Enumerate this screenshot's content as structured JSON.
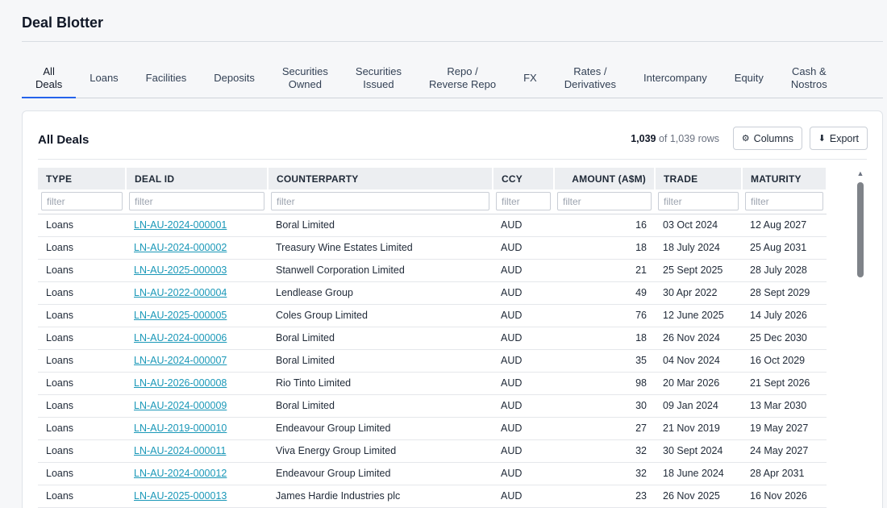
{
  "app": {
    "title": "Deal Blotter"
  },
  "tabs": [
    {
      "label": "All\nDeals",
      "active": true
    },
    {
      "label": "Loans"
    },
    {
      "label": "Facilities"
    },
    {
      "label": "Deposits"
    },
    {
      "label": "Securities\nOwned"
    },
    {
      "label": "Securities\nIssued"
    },
    {
      "label": "Repo /\nReverse Repo"
    },
    {
      "label": "FX"
    },
    {
      "label": "Rates /\nDerivatives"
    },
    {
      "label": "Intercompany"
    },
    {
      "label": "Equity"
    },
    {
      "label": "Cash &\nNostros"
    }
  ],
  "card": {
    "title": "All Deals",
    "row_count_shown": "1,039",
    "row_count_suffix": "of 1,039 rows",
    "columns_button": "Columns",
    "columns_icon": "gear-icon",
    "export_button": "Export",
    "export_icon": "download-arrow-icon"
  },
  "table": {
    "columns": [
      "TYPE",
      "DEAL ID",
      "COUNTERPARTY",
      "CCY",
      "AMOUNT (A$M)",
      "TRADE",
      "MATURITY"
    ],
    "filter_placeholder": "filter",
    "rows": [
      [
        "Loans",
        "LN-AU-2024-000001",
        "Boral Limited",
        "AUD",
        "16",
        "03 Oct 2024",
        "12 Aug 2027"
      ],
      [
        "Loans",
        "LN-AU-2024-000002",
        "Treasury Wine Estates Limited",
        "AUD",
        "18",
        "18 July 2024",
        "25 Aug 2031"
      ],
      [
        "Loans",
        "LN-AU-2025-000003",
        "Stanwell Corporation Limited",
        "AUD",
        "21",
        "25 Sept 2025",
        "28 July 2028"
      ],
      [
        "Loans",
        "LN-AU-2022-000004",
        "Lendlease Group",
        "AUD",
        "49",
        "30 Apr 2022",
        "28 Sept 2029"
      ],
      [
        "Loans",
        "LN-AU-2025-000005",
        "Coles Group Limited",
        "AUD",
        "76",
        "12 June 2025",
        "14 July 2026"
      ],
      [
        "Loans",
        "LN-AU-2024-000006",
        "Boral Limited",
        "AUD",
        "18",
        "26 Nov 2024",
        "25 Dec 2030"
      ],
      [
        "Loans",
        "LN-AU-2024-000007",
        "Boral Limited",
        "AUD",
        "35",
        "04 Nov 2024",
        "16 Oct 2029"
      ],
      [
        "Loans",
        "LN-AU-2026-000008",
        "Rio Tinto Limited",
        "AUD",
        "98",
        "20 Mar 2026",
        "21 Sept 2026"
      ],
      [
        "Loans",
        "LN-AU-2024-000009",
        "Boral Limited",
        "AUD",
        "30",
        "09 Jan 2024",
        "13 Mar 2030"
      ],
      [
        "Loans",
        "LN-AU-2019-000010",
        "Endeavour Group Limited",
        "AUD",
        "27",
        "21 Nov 2019",
        "19 May 2027"
      ],
      [
        "Loans",
        "LN-AU-2024-000011",
        "Viva Energy Group Limited",
        "AUD",
        "32",
        "30 Sept 2024",
        "24 May 2027"
      ],
      [
        "Loans",
        "LN-AU-2024-000012",
        "Endeavour Group Limited",
        "AUD",
        "32",
        "18 June 2024",
        "28 Apr 2031"
      ],
      [
        "Loans",
        "LN-AU-2025-000013",
        "James Hardie Industries plc",
        "AUD",
        "23",
        "26 Nov 2025",
        "16 Nov 2026"
      ]
    ]
  },
  "colors": {
    "accent": "#2563eb",
    "link": "#1a98b8",
    "header_bg": "#eceef1"
  }
}
